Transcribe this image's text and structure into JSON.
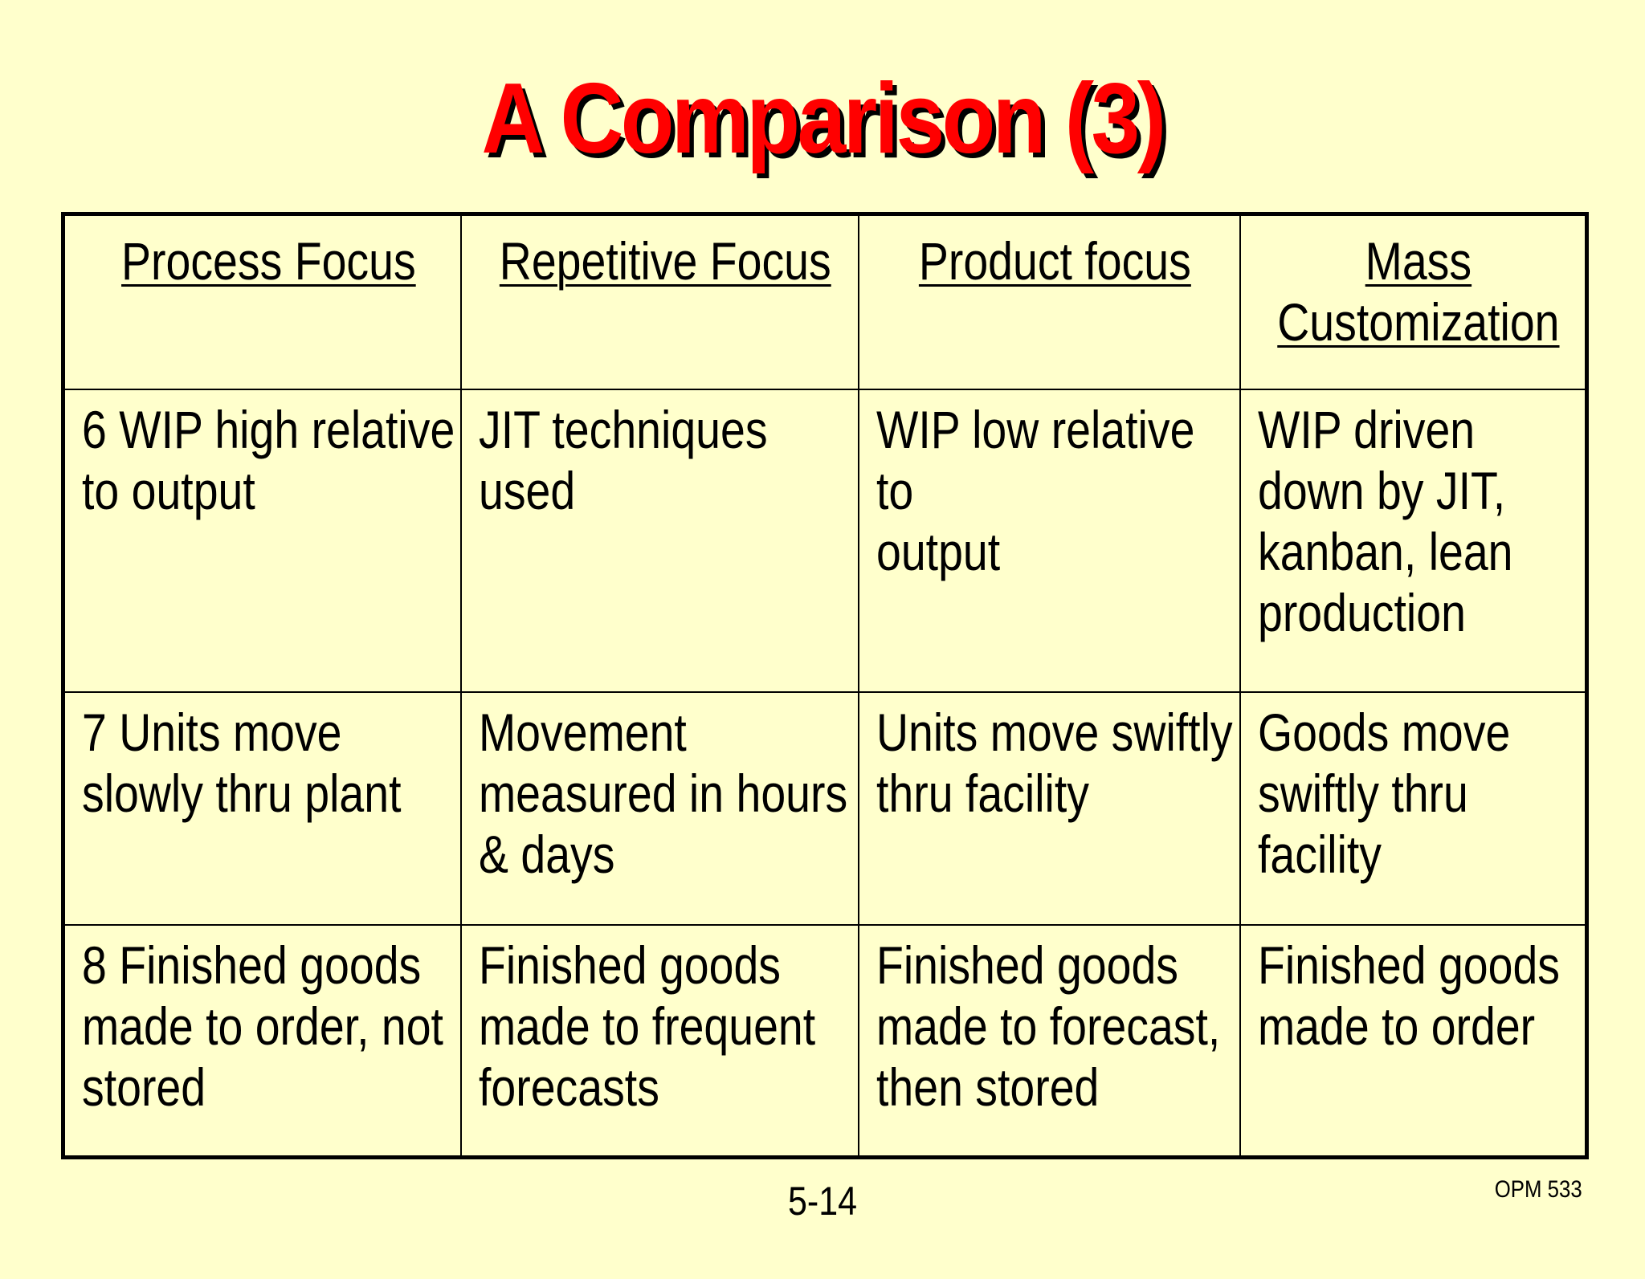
{
  "slide": {
    "title": "A Comparison (3)",
    "page_number": "5-14",
    "course_code": "OPM 533"
  },
  "table": {
    "headers": [
      "Process Focus",
      "Repetitive Focus",
      "Product focus",
      "Mass\nCustomization"
    ],
    "rows": [
      [
        "6  WIP high relative\nto output",
        "JIT techniques\nused",
        "WIP low relative to\noutput",
        "WIP driven\ndown by JIT,\nkanban, lean\nproduction"
      ],
      [
        "7  Units move\nslowly thru plant",
        "Movement\nmeasured in hours\n& days",
        "Units move swiftly\nthru facility",
        "Goods move\nswiftly thru\nfacility"
      ],
      [
        "8  Finished goods\nmade to order, not\nstored",
        "Finished goods\nmade to frequent\nforecasts",
        "Finished goods\nmade to forecast,\nthen stored",
        "Finished goods\nmade to order"
      ]
    ]
  },
  "colors": {
    "background": "#FFFFCC",
    "title": "#FF0000",
    "title_shadow": "#000000",
    "text": "#000000",
    "border": "#000000"
  }
}
